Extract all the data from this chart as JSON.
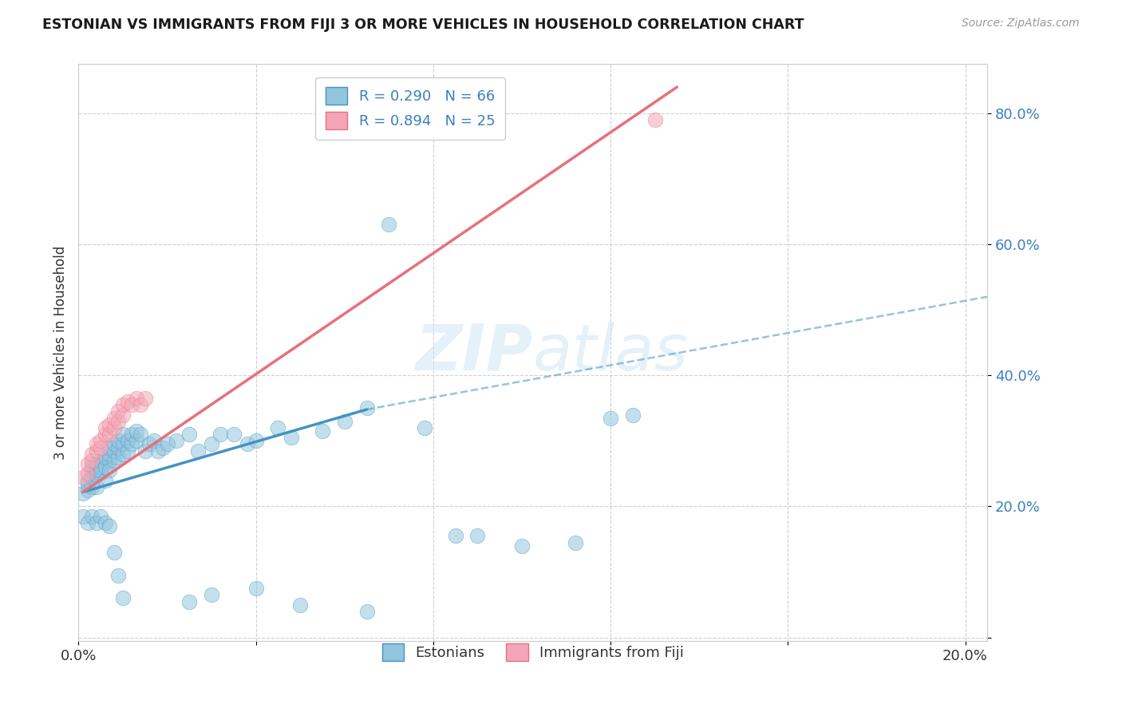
{
  "title": "ESTONIAN VS IMMIGRANTS FROM FIJI 3 OR MORE VEHICLES IN HOUSEHOLD CORRELATION CHART",
  "source": "Source: ZipAtlas.com",
  "ylabel": "3 or more Vehicles in Household",
  "xlim": [
    0.0,
    0.205
  ],
  "ylim": [
    -0.005,
    0.875
  ],
  "yticks": [
    0.0,
    0.2,
    0.4,
    0.6,
    0.8
  ],
  "xticks": [
    0.0,
    0.04,
    0.08,
    0.12,
    0.16,
    0.2
  ],
  "xtick_labels": [
    "0.0%",
    "",
    "",
    "",
    "",
    "20.0%"
  ],
  "ytick_labels": [
    "",
    "20.0%",
    "40.0%",
    "60.0%",
    "80.0%"
  ],
  "legend_R1": "R = 0.290",
  "legend_N1": "N = 66",
  "legend_R2": "R = 0.894",
  "legend_N2": "N = 25",
  "color_blue": "#92c5de",
  "color_pink": "#f4a6b8",
  "color_blue_line": "#4393c3",
  "color_pink_line": "#e8707a",
  "watermark_color": "#cce4f5",
  "blue_scatter_x": [
    0.001,
    0.002,
    0.002,
    0.002,
    0.003,
    0.003,
    0.003,
    0.003,
    0.004,
    0.004,
    0.004,
    0.004,
    0.005,
    0.005,
    0.005,
    0.005,
    0.006,
    0.006,
    0.006,
    0.007,
    0.007,
    0.007,
    0.007,
    0.008,
    0.008,
    0.008,
    0.009,
    0.009,
    0.009,
    0.01,
    0.01,
    0.01,
    0.011,
    0.011,
    0.012,
    0.012,
    0.013,
    0.013,
    0.014,
    0.015,
    0.016,
    0.017,
    0.018,
    0.019,
    0.02,
    0.022,
    0.025,
    0.027,
    0.03,
    0.032,
    0.035,
    0.038,
    0.04,
    0.045,
    0.048,
    0.055,
    0.06,
    0.065,
    0.07,
    0.078,
    0.085,
    0.09,
    0.1,
    0.112,
    0.12,
    0.125
  ],
  "blue_scatter_y": [
    0.22,
    0.225,
    0.24,
    0.235,
    0.23,
    0.245,
    0.255,
    0.26,
    0.23,
    0.248,
    0.255,
    0.265,
    0.25,
    0.26,
    0.27,
    0.255,
    0.24,
    0.26,
    0.275,
    0.27,
    0.255,
    0.28,
    0.29,
    0.27,
    0.285,
    0.295,
    0.275,
    0.29,
    0.3,
    0.28,
    0.295,
    0.31,
    0.285,
    0.3,
    0.295,
    0.31,
    0.3,
    0.315,
    0.31,
    0.285,
    0.295,
    0.3,
    0.285,
    0.29,
    0.295,
    0.3,
    0.31,
    0.285,
    0.295,
    0.31,
    0.31,
    0.295,
    0.3,
    0.32,
    0.305,
    0.315,
    0.33,
    0.35,
    0.63,
    0.32,
    0.155,
    0.155,
    0.14,
    0.145,
    0.335,
    0.34
  ],
  "blue_scatter_y_below": [
    0.185,
    0.175,
    0.185,
    0.175,
    0.185,
    0.175,
    0.17,
    0.13,
    0.095,
    0.06,
    0.055,
    0.065,
    0.075,
    0.05,
    0.04
  ],
  "blue_scatter_x_below": [
    0.001,
    0.002,
    0.003,
    0.004,
    0.005,
    0.006,
    0.007,
    0.008,
    0.009,
    0.01,
    0.025,
    0.03,
    0.04,
    0.05,
    0.065
  ],
  "pink_scatter_x": [
    0.001,
    0.002,
    0.002,
    0.003,
    0.003,
    0.004,
    0.004,
    0.005,
    0.005,
    0.006,
    0.006,
    0.007,
    0.007,
    0.008,
    0.008,
    0.009,
    0.009,
    0.01,
    0.01,
    0.011,
    0.012,
    0.013,
    0.014,
    0.015,
    0.13
  ],
  "pink_scatter_y": [
    0.245,
    0.25,
    0.265,
    0.27,
    0.28,
    0.285,
    0.295,
    0.29,
    0.3,
    0.31,
    0.32,
    0.31,
    0.325,
    0.32,
    0.335,
    0.33,
    0.345,
    0.34,
    0.355,
    0.36,
    0.355,
    0.365,
    0.355,
    0.365,
    0.79
  ],
  "blue_line_x": [
    0.001,
    0.065
  ],
  "blue_line_y": [
    0.222,
    0.348
  ],
  "pink_line_x": [
    0.001,
    0.135
  ],
  "pink_line_y": [
    0.222,
    0.84
  ],
  "dash_line_x": [
    0.065,
    0.205
  ],
  "dash_line_y": [
    0.348,
    0.52
  ]
}
